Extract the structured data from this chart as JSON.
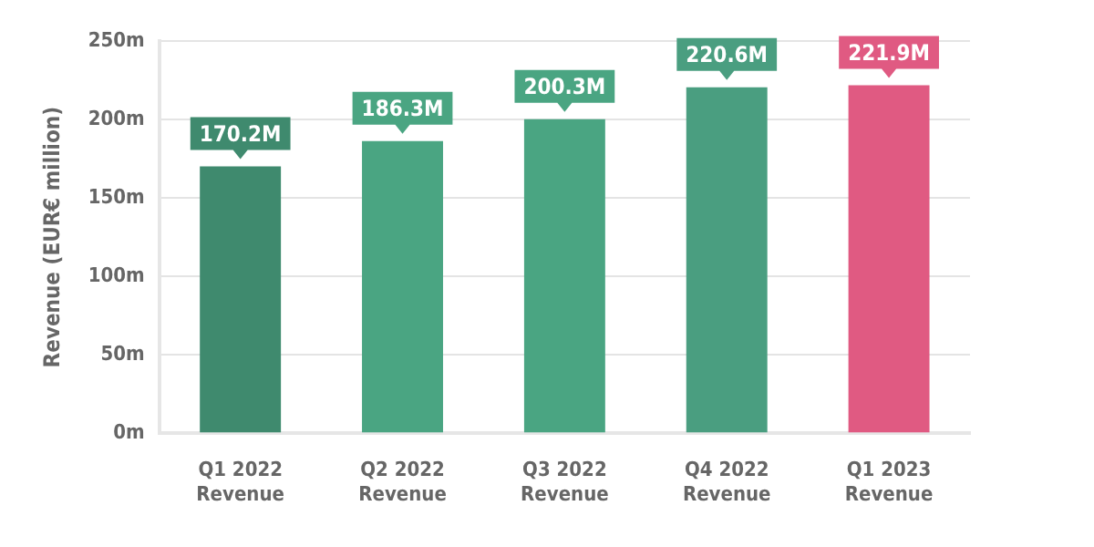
{
  "chart_data": {
    "type": "bar",
    "ylabel": "Revenue (EUR€ million)",
    "categories": [
      "Q1 2022 Revenue",
      "Q2 2022 Revenue",
      "Q3 2022 Revenue",
      "Q4 2022 Revenue",
      "Q1 2023 Revenue"
    ],
    "values": [
      170.2,
      186.3,
      200.3,
      220.6,
      221.9
    ],
    "value_labels": [
      "170.2M",
      "186.3M",
      "200.3M",
      "220.6M",
      "221.9M"
    ],
    "colors": [
      "#3f8a6e",
      "#4aa582",
      "#4aa582",
      "#4a9e80",
      "#e05a82"
    ],
    "ylim": [
      0,
      250
    ],
    "yticks": [
      {
        "value": 0,
        "label": "0m"
      },
      {
        "value": 50,
        "label": "50m"
      },
      {
        "value": 100,
        "label": "100m"
      },
      {
        "value": 150,
        "label": "150m"
      },
      {
        "value": 200,
        "label": "200m"
      },
      {
        "value": 250,
        "label": "250m"
      }
    ],
    "grid": "y"
  }
}
